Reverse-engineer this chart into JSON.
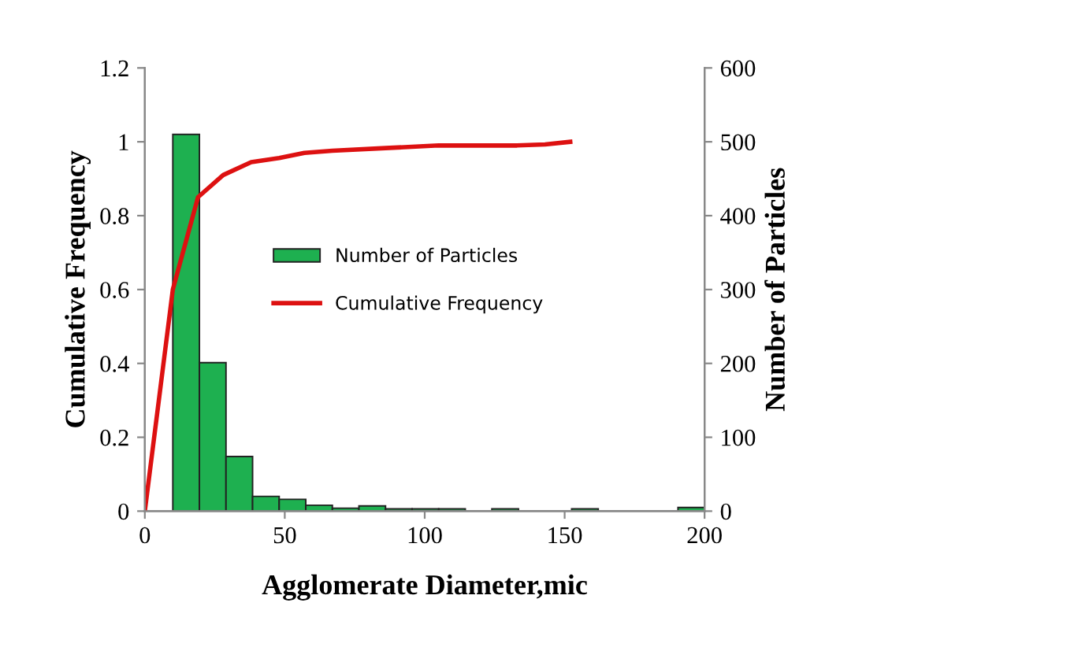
{
  "chart_data": {
    "type": "histogram",
    "xlabel": "Agglomerate Diameter,mic",
    "ylabel": "Cumulative Frequency",
    "y2label": "Number of Particles",
    "xlim": [
      0,
      200
    ],
    "xticks": [
      0,
      50,
      100,
      150,
      200
    ],
    "ylim": [
      0,
      1.2
    ],
    "yticks": [
      0,
      0.2,
      0.4,
      0.6,
      0.8,
      1,
      1.2
    ],
    "y2lim": [
      0,
      600
    ],
    "y2ticks": [
      0,
      100,
      200,
      300,
      400,
      500,
      600
    ],
    "legend": "center left",
    "grid": false,
    "series": [
      {
        "name": "Number of Particles",
        "type": "histogram",
        "axis": "y2",
        "color": "#1eb050",
        "bins": [
          10,
          19.5,
          29,
          38.5,
          48,
          57.5,
          67,
          76.5,
          86,
          95.5,
          105,
          114.5,
          124,
          133.5,
          143,
          152.5,
          162,
          171.5,
          181,
          190.5,
          200
        ],
        "values": [
          510,
          201,
          74,
          20,
          16,
          8,
          4,
          7,
          3,
          3,
          3,
          0,
          3,
          0,
          0,
          3,
          0,
          0,
          0,
          5
        ]
      },
      {
        "name": "Cumulative Frequency",
        "type": "line",
        "axis": "y",
        "color": "#dd1111",
        "x": [
          0,
          10,
          19,
          28,
          38,
          48,
          57,
          67,
          86,
          105,
          124,
          133,
          143,
          152
        ],
        "values": [
          0,
          0.6,
          0.85,
          0.91,
          0.945,
          0.956,
          0.97,
          0.976,
          0.983,
          0.99,
          0.99,
          0.99,
          0.993,
          1.0
        ]
      }
    ]
  }
}
